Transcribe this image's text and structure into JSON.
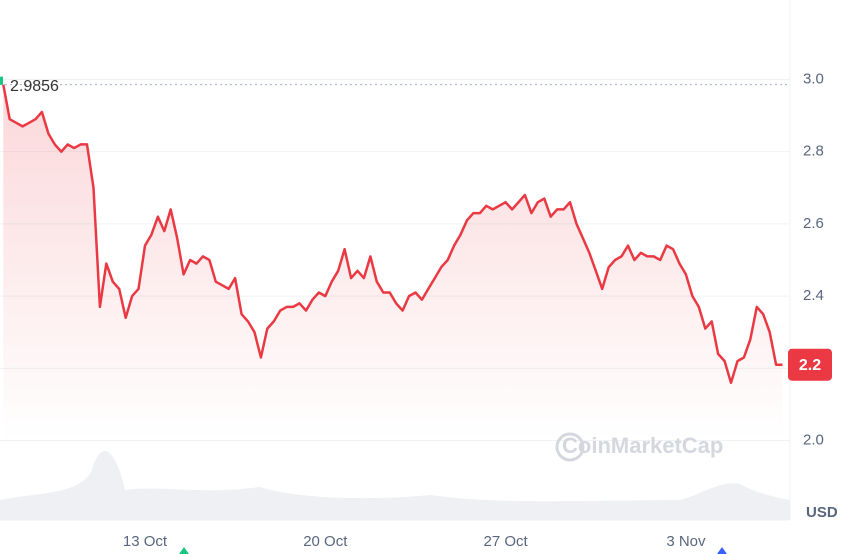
{
  "chart_data": {
    "type": "line",
    "categories": [
      null,
      null,
      null,
      null,
      null,
      null,
      null,
      null,
      null,
      null,
      null,
      null,
      null,
      null,
      null,
      null,
      null,
      null,
      null,
      null,
      null,
      null,
      "13 Oct",
      null,
      null,
      null,
      null,
      null,
      null,
      null,
      null,
      null,
      null,
      null,
      null,
      null,
      null,
      null,
      null,
      null,
      null,
      null,
      null,
      null,
      null,
      null,
      null,
      null,
      null,
      null,
      "20 Oct",
      null,
      null,
      null,
      null,
      null,
      null,
      null,
      null,
      null,
      null,
      null,
      null,
      null,
      null,
      null,
      null,
      null,
      null,
      null,
      null,
      null,
      null,
      null,
      null,
      null,
      null,
      null,
      "27 Oct",
      null,
      null,
      null,
      null,
      null,
      null,
      null,
      null,
      null,
      null,
      null,
      null,
      null,
      null,
      null,
      null,
      null,
      null,
      null,
      null,
      null,
      null,
      null,
      null,
      null,
      null,
      null,
      "3 Nov",
      null,
      null,
      null,
      null,
      null,
      null,
      null,
      null,
      null,
      null,
      null,
      null,
      null,
      null,
      null
    ],
    "series": [
      {
        "color": "#ea3943",
        "values": [
          2.9856,
          2.89,
          2.88,
          2.87,
          2.88,
          2.89,
          2.91,
          2.85,
          2.82,
          2.8,
          2.82,
          2.81,
          2.82,
          2.82,
          2.7,
          2.37,
          2.49,
          2.44,
          2.42,
          2.34,
          2.4,
          2.42,
          2.54,
          2.57,
          2.62,
          2.58,
          2.64,
          2.56,
          2.46,
          2.5,
          2.49,
          2.51,
          2.5,
          2.44,
          2.43,
          2.42,
          2.45,
          2.35,
          2.33,
          2.3,
          2.23,
          2.31,
          2.33,
          2.36,
          2.37,
          2.37,
          2.38,
          2.36,
          2.39,
          2.41,
          2.4,
          2.44,
          2.47,
          2.53,
          2.45,
          2.47,
          2.45,
          2.51,
          2.44,
          2.41,
          2.41,
          2.38,
          2.36,
          2.4,
          2.41,
          2.39,
          2.42,
          2.45,
          2.48,
          2.5,
          2.54,
          2.57,
          2.61,
          2.63,
          2.63,
          2.65,
          2.64,
          2.65,
          2.66,
          2.64,
          2.66,
          2.68,
          2.63,
          2.66,
          2.67,
          2.62,
          2.64,
          2.64,
          2.66,
          2.6,
          2.56,
          2.52,
          2.47,
          2.42,
          2.48,
          2.5,
          2.51,
          2.54,
          2.5,
          2.52,
          2.51,
          2.51,
          2.5,
          2.54,
          2.53,
          2.49,
          2.46,
          2.4,
          2.37,
          2.31,
          2.33,
          2.24,
          2.22,
          2.16,
          2.22,
          2.23,
          2.28,
          2.37,
          2.35,
          2.3,
          2.21,
          2.21
        ]
      }
    ],
    "ylim": [
      1.78,
      3.22
    ],
    "yticks": [
      {
        "value": 2,
        "label": "2.0"
      },
      2.2,
      2.4,
      2.6,
      2.8,
      {
        "value": 3,
        "label": "3.0"
      }
    ],
    "grid": true,
    "reference_value": 2.9856,
    "current_price": {
      "value": 2.21,
      "label": "2.2"
    },
    "currency": "USD",
    "watermark": "CoinMarketCap"
  }
}
